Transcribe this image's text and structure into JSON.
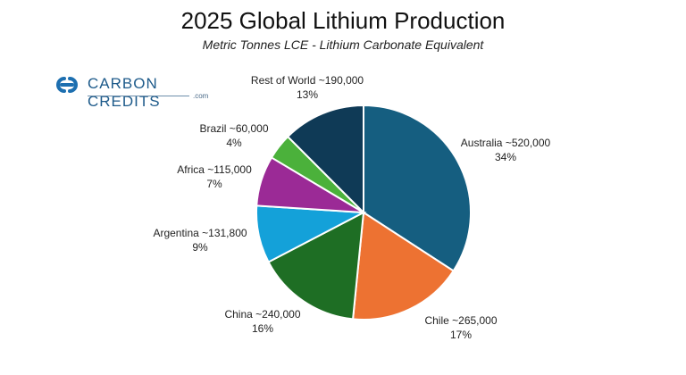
{
  "logo": {
    "name": "CARBON CREDITS",
    "suffix": ".com"
  },
  "chart_data": {
    "type": "pie",
    "title": "2025 Global Lithium Production",
    "subtitle": "Metric Tonnes LCE - Lithium Carbonate Equivalent",
    "slices": [
      {
        "label": "Australia ~520,000",
        "value": 520000,
        "percent": "34%",
        "color": "#155e80"
      },
      {
        "label": "Chile ~265,000",
        "value": 265000,
        "percent": "17%",
        "color": "#ed7232"
      },
      {
        "label": "China ~240,000",
        "value": 240000,
        "percent": "16%",
        "color": "#1e6e24"
      },
      {
        "label": "Argentina ~131,800",
        "value": 131800,
        "percent": "9%",
        "color": "#14a1d9"
      },
      {
        "label": "Africa ~115,000",
        "value": 115000,
        "percent": "7%",
        "color": "#9b2a96"
      },
      {
        "label": "Brazil ~60,000",
        "value": 60000,
        "percent": "4%",
        "color": "#4bb13b"
      },
      {
        "label": "Rest of World ~190,000",
        "value": 190000,
        "percent": "13%",
        "color": "#0f3a56"
      }
    ]
  }
}
